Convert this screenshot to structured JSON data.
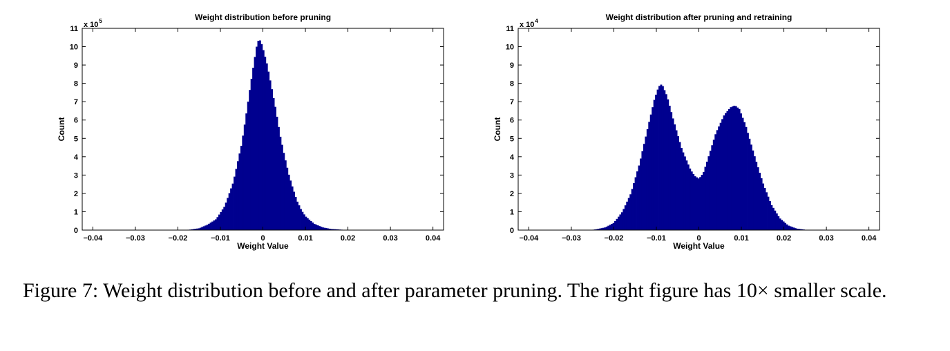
{
  "colors": {
    "bar": "#00008f",
    "axis": "#000000",
    "background": "#ffffff"
  },
  "chart_data": [
    {
      "type": "bar",
      "title": "Weight distribution before pruning",
      "xlabel": "Weight Value",
      "ylabel": "Count",
      "y_exponent_label": "x 10",
      "y_exponent": "5",
      "x_ticks": [
        "−0.04",
        "−0.03",
        "−0.02",
        "−0.01",
        "0",
        "0.01",
        "0.02",
        "0.03",
        "0.04"
      ],
      "y_ticks": [
        "0",
        "1",
        "2",
        "3",
        "4",
        "5",
        "6",
        "7",
        "8",
        "9",
        "10",
        "11"
      ],
      "xlim": [
        -0.0425,
        0.0425
      ],
      "ylim": [
        0,
        11
      ],
      "y_scale": 100000,
      "grid": false,
      "distribution_points": [
        {
          "x": -0.0185,
          "y": 0.0
        },
        {
          "x": -0.017,
          "y": 0.03
        },
        {
          "x": -0.015,
          "y": 0.1
        },
        {
          "x": -0.013,
          "y": 0.3
        },
        {
          "x": -0.011,
          "y": 0.6
        },
        {
          "x": -0.009,
          "y": 1.3
        },
        {
          "x": -0.007,
          "y": 2.6
        },
        {
          "x": -0.005,
          "y": 4.7
        },
        {
          "x": -0.004,
          "y": 6.2
        },
        {
          "x": -0.003,
          "y": 7.8
        },
        {
          "x": -0.002,
          "y": 9.3
        },
        {
          "x": -0.0015,
          "y": 10.0
        },
        {
          "x": -0.001,
          "y": 10.4
        },
        {
          "x": -0.0005,
          "y": 10.3
        },
        {
          "x": 0.0,
          "y": 9.9
        },
        {
          "x": 0.001,
          "y": 9.0
        },
        {
          "x": 0.002,
          "y": 7.8
        },
        {
          "x": 0.003,
          "y": 6.6
        },
        {
          "x": 0.004,
          "y": 5.2
        },
        {
          "x": 0.005,
          "y": 4.1
        },
        {
          "x": 0.006,
          "y": 3.1
        },
        {
          "x": 0.007,
          "y": 2.3
        },
        {
          "x": 0.008,
          "y": 1.6
        },
        {
          "x": 0.009,
          "y": 1.1
        },
        {
          "x": 0.01,
          "y": 0.75
        },
        {
          "x": 0.012,
          "y": 0.35
        },
        {
          "x": 0.014,
          "y": 0.15
        },
        {
          "x": 0.016,
          "y": 0.06
        },
        {
          "x": 0.019,
          "y": 0.015
        },
        {
          "x": 0.02,
          "y": 0.0
        }
      ]
    },
    {
      "type": "bar",
      "title": "Weight distribution after pruning and retraining",
      "xlabel": "Weight Value",
      "ylabel": "Count",
      "y_exponent_label": "x 10",
      "y_exponent": "4",
      "x_ticks": [
        "−0.04",
        "−0.03",
        "−0.02",
        "−0.01",
        "0",
        "0.01",
        "0.02",
        "0.03",
        "0.04"
      ],
      "y_ticks": [
        "0",
        "1",
        "2",
        "3",
        "4",
        "5",
        "6",
        "7",
        "8",
        "9",
        "10",
        "11"
      ],
      "xlim": [
        -0.0425,
        0.0425
      ],
      "ylim": [
        0,
        11
      ],
      "y_scale": 10000,
      "grid": false,
      "distribution_points": [
        {
          "x": -0.0255,
          "y": 0.0
        },
        {
          "x": -0.024,
          "y": 0.05
        },
        {
          "x": -0.022,
          "y": 0.15
        },
        {
          "x": -0.02,
          "y": 0.4
        },
        {
          "x": -0.018,
          "y": 1.0
        },
        {
          "x": -0.016,
          "y": 2.0
        },
        {
          "x": -0.014,
          "y": 3.6
        },
        {
          "x": -0.012,
          "y": 5.6
        },
        {
          "x": -0.0105,
          "y": 7.1
        },
        {
          "x": -0.0095,
          "y": 7.8
        },
        {
          "x": -0.009,
          "y": 7.95
        },
        {
          "x": -0.0085,
          "y": 7.85
        },
        {
          "x": -0.0075,
          "y": 7.3
        },
        {
          "x": -0.006,
          "y": 6.0
        },
        {
          "x": -0.004,
          "y": 4.4
        },
        {
          "x": -0.002,
          "y": 3.3
        },
        {
          "x": -0.001,
          "y": 2.95
        },
        {
          "x": 0.0,
          "y": 2.8
        },
        {
          "x": 0.001,
          "y": 3.1
        },
        {
          "x": 0.002,
          "y": 3.8
        },
        {
          "x": 0.004,
          "y": 5.3
        },
        {
          "x": 0.006,
          "y": 6.3
        },
        {
          "x": 0.0075,
          "y": 6.7
        },
        {
          "x": 0.0085,
          "y": 6.8
        },
        {
          "x": 0.0095,
          "y": 6.6
        },
        {
          "x": 0.011,
          "y": 5.7
        },
        {
          "x": 0.013,
          "y": 4.1
        },
        {
          "x": 0.015,
          "y": 2.6
        },
        {
          "x": 0.017,
          "y": 1.4
        },
        {
          "x": 0.019,
          "y": 0.65
        },
        {
          "x": 0.021,
          "y": 0.25
        },
        {
          "x": 0.023,
          "y": 0.08
        },
        {
          "x": 0.025,
          "y": 0.02
        },
        {
          "x": 0.027,
          "y": 0.0
        }
      ]
    }
  ],
  "caption": {
    "text": "Figure 7: Weight distribution before and after parameter pruning. The right figure has 10× smaller scale."
  }
}
